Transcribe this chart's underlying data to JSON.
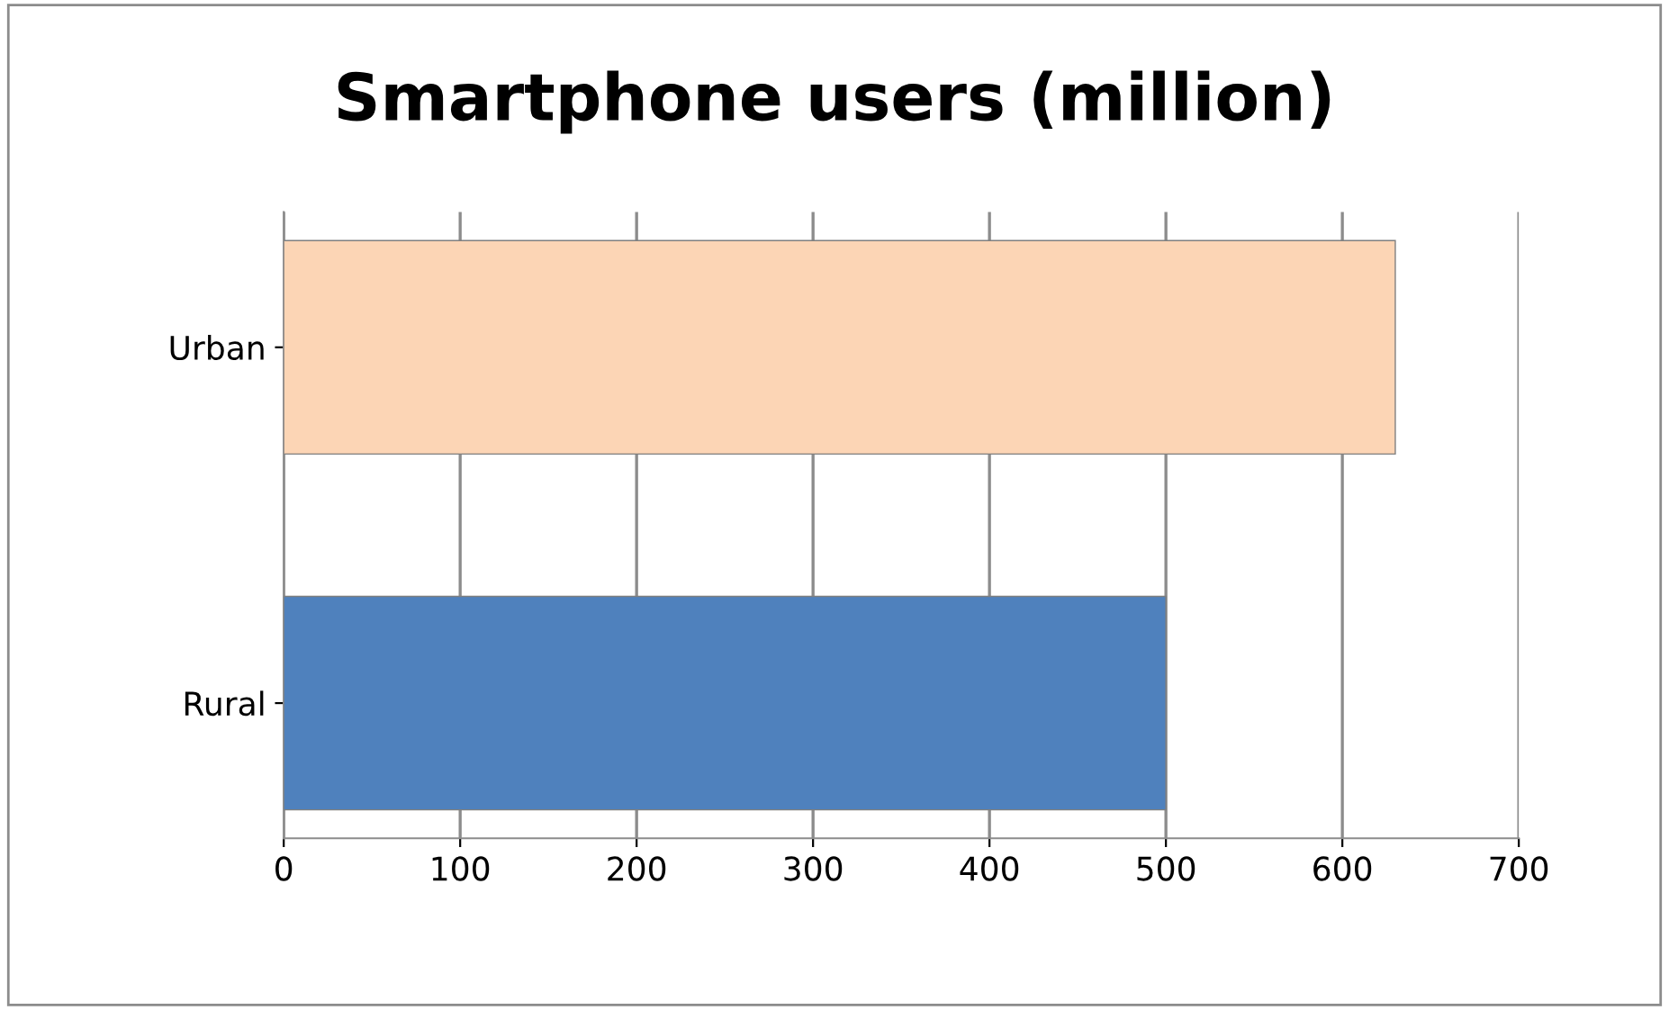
{
  "chart_data": {
    "type": "bar",
    "orientation": "horizontal",
    "title": "Smartphone users (million)",
    "categories": [
      "Urban",
      "Rural"
    ],
    "values": [
      630,
      500
    ],
    "colors": [
      "#fcd5b5",
      "#4f81bd"
    ],
    "xlim": [
      0,
      700
    ],
    "xticks": [
      0,
      100,
      200,
      300,
      400,
      500,
      600,
      700
    ],
    "grid": "x"
  }
}
